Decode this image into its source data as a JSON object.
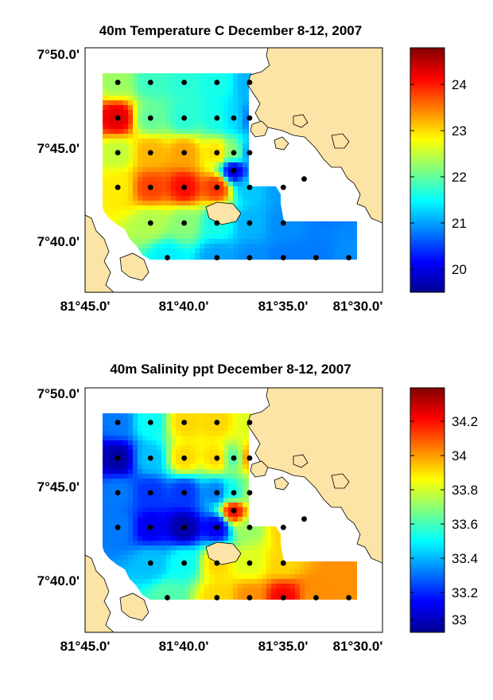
{
  "chart_data": [
    {
      "type": "heatmap",
      "title": "40m Temperature C December 8-12, 2007",
      "x_tick_labels": [
        "81°45.0'",
        "81°40.0'",
        "81°35.0'",
        "81°30.0'"
      ],
      "y_tick_labels": [
        "7°50.0'",
        "7°45.0'",
        "7°40.0'"
      ],
      "xlim": [
        -81.783,
        -81.483
      ],
      "ylim": [
        7.617,
        7.85
      ],
      "colorbar": {
        "ticks": [
          "24",
          "23",
          "22",
          "21",
          "20"
        ],
        "tick_values": [
          24,
          23,
          22,
          21,
          20
        ],
        "range": [
          19.5,
          24.8
        ],
        "colormap": "jet"
      },
      "field_values": {
        "description": "interpolated temperature (C) at stations",
        "stations": [
          {
            "x": -81.75,
            "y": 7.817,
            "v": 22.3
          },
          {
            "x": -81.717,
            "y": 7.817,
            "v": 21.8
          },
          {
            "x": -81.683,
            "y": 7.817,
            "v": 21.7
          },
          {
            "x": -81.65,
            "y": 7.817,
            "v": 21.6
          },
          {
            "x": -81.617,
            "y": 7.817,
            "v": 21.1
          },
          {
            "x": -81.75,
            "y": 7.783,
            "v": 24.3
          },
          {
            "x": -81.717,
            "y": 7.783,
            "v": 22.0
          },
          {
            "x": -81.683,
            "y": 7.783,
            "v": 21.7
          },
          {
            "x": -81.65,
            "y": 7.783,
            "v": 21.6
          },
          {
            "x": -81.633,
            "y": 7.783,
            "v": 21.3
          },
          {
            "x": -81.617,
            "y": 7.783,
            "v": 20.8
          },
          {
            "x": -81.75,
            "y": 7.75,
            "v": 22.5
          },
          {
            "x": -81.717,
            "y": 7.75,
            "v": 23.2
          },
          {
            "x": -81.683,
            "y": 7.75,
            "v": 23.3
          },
          {
            "x": -81.65,
            "y": 7.75,
            "v": 23.0
          },
          {
            "x": -81.633,
            "y": 7.75,
            "v": 22.2
          },
          {
            "x": -81.617,
            "y": 7.75,
            "v": 21.0
          },
          {
            "x": -81.633,
            "y": 7.733,
            "v": 20.0
          },
          {
            "x": -81.75,
            "y": 7.717,
            "v": 22.9
          },
          {
            "x": -81.717,
            "y": 7.717,
            "v": 23.8
          },
          {
            "x": -81.683,
            "y": 7.717,
            "v": 24.1
          },
          {
            "x": -81.65,
            "y": 7.717,
            "v": 23.9
          },
          {
            "x": -81.617,
            "y": 7.717,
            "v": 21.2
          },
          {
            "x": -81.583,
            "y": 7.717,
            "v": 21.0
          },
          {
            "x": -81.717,
            "y": 7.683,
            "v": 22.4
          },
          {
            "x": -81.683,
            "y": 7.683,
            "v": 22.2
          },
          {
            "x": -81.65,
            "y": 7.683,
            "v": 21.6
          },
          {
            "x": -81.617,
            "y": 7.683,
            "v": 21.1
          },
          {
            "x": -81.583,
            "y": 7.683,
            "v": 20.9
          },
          {
            "x": -81.7,
            "y": 7.65,
            "v": 21.4
          },
          {
            "x": -81.65,
            "y": 7.65,
            "v": 21.0
          },
          {
            "x": -81.617,
            "y": 7.65,
            "v": 20.9
          },
          {
            "x": -81.583,
            "y": 7.65,
            "v": 20.8
          },
          {
            "x": -81.55,
            "y": 7.65,
            "v": 20.8
          },
          {
            "x": -81.517,
            "y": 7.65,
            "v": 20.9
          },
          {
            "x": -81.562,
            "y": 7.725,
            "v": 19.6
          }
        ]
      }
    },
    {
      "type": "heatmap",
      "title": "40m Salinity ppt December 8-12, 2007",
      "x_tick_labels": [
        "81°45.0'",
        "81°40.0'",
        "81°35.0'",
        "81°30.0'"
      ],
      "y_tick_labels": [
        "7°50.0'",
        "7°45.0'",
        "7°40.0'"
      ],
      "xlim": [
        -81.783,
        -81.483
      ],
      "ylim": [
        7.617,
        7.85
      ],
      "colorbar": {
        "ticks": [
          "34.2",
          "34",
          "33.8",
          "33.6",
          "33.4",
          "33.2",
          "33"
        ],
        "tick_values": [
          34.2,
          34,
          33.8,
          33.6,
          33.4,
          33.2,
          33
        ],
        "range": [
          32.95,
          34.38
        ],
        "colormap": "jet"
      },
      "field_values": {
        "description": "interpolated salinity (ppt) at stations",
        "stations": [
          {
            "x": -81.75,
            "y": 7.817,
            "v": 33.3
          },
          {
            "x": -81.717,
            "y": 7.817,
            "v": 33.5
          },
          {
            "x": -81.683,
            "y": 7.817,
            "v": 33.9
          },
          {
            "x": -81.65,
            "y": 7.817,
            "v": 33.9
          },
          {
            "x": -81.617,
            "y": 7.817,
            "v": 33.8
          },
          {
            "x": -81.75,
            "y": 7.783,
            "v": 33.0
          },
          {
            "x": -81.717,
            "y": 7.783,
            "v": 33.4
          },
          {
            "x": -81.683,
            "y": 7.783,
            "v": 33.9
          },
          {
            "x": -81.65,
            "y": 7.783,
            "v": 33.9
          },
          {
            "x": -81.633,
            "y": 7.783,
            "v": 33.6
          },
          {
            "x": -81.617,
            "y": 7.783,
            "v": 34.0
          },
          {
            "x": -81.75,
            "y": 7.75,
            "v": 33.3
          },
          {
            "x": -81.717,
            "y": 7.75,
            "v": 33.2
          },
          {
            "x": -81.683,
            "y": 7.75,
            "v": 33.2
          },
          {
            "x": -81.65,
            "y": 7.75,
            "v": 33.3
          },
          {
            "x": -81.633,
            "y": 7.75,
            "v": 33.5
          },
          {
            "x": -81.617,
            "y": 7.75,
            "v": 33.7
          },
          {
            "x": -81.633,
            "y": 7.733,
            "v": 34.2
          },
          {
            "x": -81.75,
            "y": 7.717,
            "v": 33.3
          },
          {
            "x": -81.717,
            "y": 7.717,
            "v": 33.1
          },
          {
            "x": -81.683,
            "y": 7.717,
            "v": 33.0
          },
          {
            "x": -81.65,
            "y": 7.717,
            "v": 33.1
          },
          {
            "x": -81.617,
            "y": 7.717,
            "v": 33.7
          },
          {
            "x": -81.583,
            "y": 7.717,
            "v": 33.9
          },
          {
            "x": -81.717,
            "y": 7.683,
            "v": 33.4
          },
          {
            "x": -81.683,
            "y": 7.683,
            "v": 33.5
          },
          {
            "x": -81.65,
            "y": 7.683,
            "v": 33.9
          },
          {
            "x": -81.617,
            "y": 7.683,
            "v": 33.8
          },
          {
            "x": -81.583,
            "y": 7.683,
            "v": 33.9
          },
          {
            "x": -81.7,
            "y": 7.65,
            "v": 33.6
          },
          {
            "x": -81.65,
            "y": 7.65,
            "v": 33.9
          },
          {
            "x": -81.617,
            "y": 7.65,
            "v": 34.0
          },
          {
            "x": -81.583,
            "y": 7.65,
            "v": 34.2
          },
          {
            "x": -81.55,
            "y": 7.65,
            "v": 34.0
          },
          {
            "x": -81.517,
            "y": 7.65,
            "v": 34.0
          },
          {
            "x": -81.562,
            "y": 7.725,
            "v": 34.3
          }
        ]
      }
    }
  ],
  "colors": {
    "land": "#fbe4a5",
    "land_outline": "#000000",
    "station_marker": "#000000",
    "background": "#ffffff"
  }
}
